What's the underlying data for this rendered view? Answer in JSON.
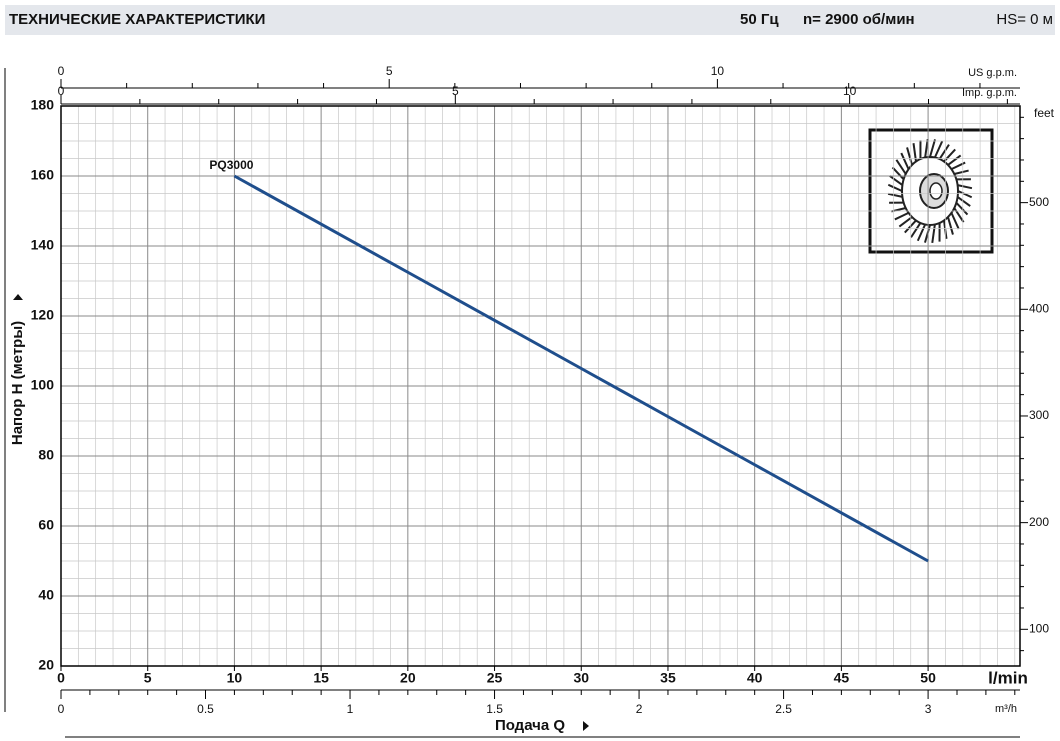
{
  "chart_data": {
    "type": "line",
    "title": "ТЕХНИЧЕСКИЕ ХАРАКТЕРИСТИКИ",
    "header_items": [
      "50 Гц",
      "n= 2900  об/мин",
      "HS= 0 м"
    ],
    "x_unit": "l/min",
    "xlabel": "Подача Q",
    "ylabel": "Напор Н (метры)",
    "x": [
      10,
      20,
      30,
      40,
      50
    ],
    "series": [
      {
        "name": "PQ3000",
        "color": "#1f4e8c",
        "values": [
          160,
          132.5,
          105,
          77.5,
          50
        ]
      }
    ],
    "xlim": [
      0,
      55.3
    ],
    "xticks": [
      0,
      5,
      10,
      15,
      20,
      25,
      30,
      35,
      40,
      45,
      50
    ],
    "ylim": [
      20,
      180
    ],
    "yticks": [
      20,
      40,
      60,
      80,
      100,
      120,
      140,
      160,
      180
    ],
    "grid": true,
    "y2label": "feet",
    "y2lim": [
      65.6,
      590.6
    ],
    "y2ticks": [
      100,
      200,
      300,
      400,
      500
    ],
    "top_axes": [
      {
        "label": "US g.p.m.",
        "xlim": [
          0,
          14.61
        ],
        "xticks": [
          0,
          5,
          10
        ]
      },
      {
        "label": "Imp. g.p.m.",
        "xlim": [
          0,
          12.16
        ],
        "xticks": [
          0,
          5,
          10
        ]
      }
    ],
    "bottom_axis2": {
      "label": "m³/h",
      "xlim": [
        0,
        3.318
      ],
      "xticks": [
        0,
        0.5,
        1,
        1.5,
        2,
        2.5,
        3
      ]
    }
  }
}
